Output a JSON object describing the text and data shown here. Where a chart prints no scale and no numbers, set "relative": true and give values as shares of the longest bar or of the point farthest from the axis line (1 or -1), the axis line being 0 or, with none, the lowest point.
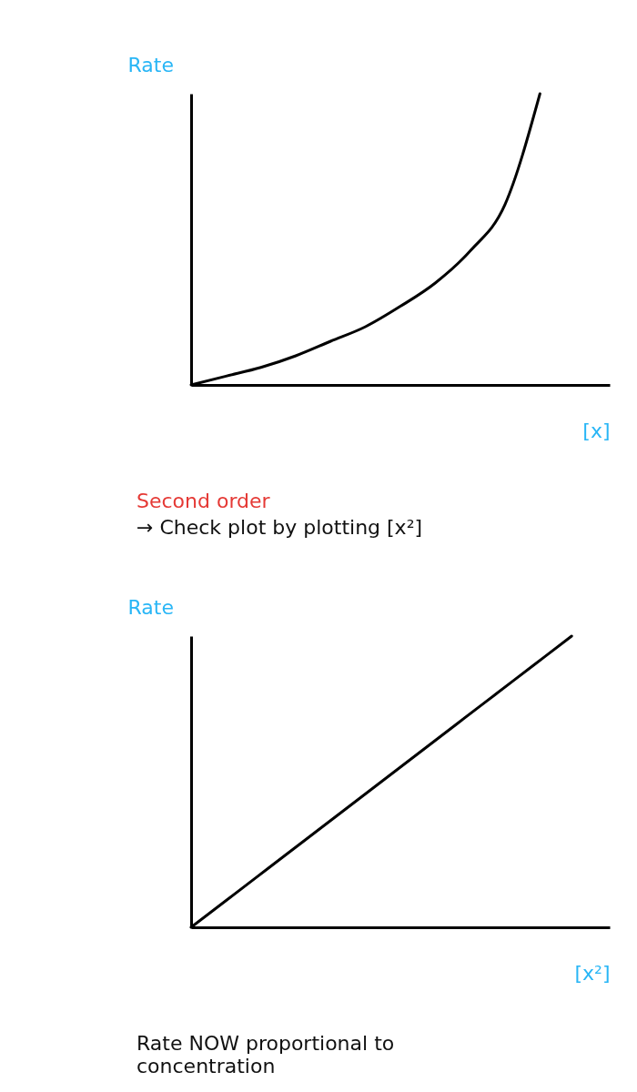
{
  "chart_data": [
    {
      "type": "line",
      "relative": true,
      "ylabel": "Rate",
      "xlabel": "[x]",
      "categories": [
        null,
        null,
        null,
        null,
        null,
        null,
        null,
        null,
        null,
        null,
        null,
        null,
        null
      ],
      "series": [
        {
          "color": "#000000",
          "values": [
            0,
            0.03,
            0.06,
            0.1,
            0.15,
            0.2,
            0.27,
            0.35,
            0.46,
            0.62,
            1.0,
            null,
            null
          ]
        }
      ],
      "annotations": [
        "Second order",
        "→ Check plot by plotting [x²]"
      ]
    },
    {
      "type": "line",
      "relative": true,
      "ylabel": "Rate",
      "xlabel": "[x²]",
      "categories": [
        null,
        null,
        null,
        null,
        null,
        null,
        null,
        null,
        null,
        null,
        null,
        null
      ],
      "series": [
        {
          "color": "#000000",
          "values": [
            0,
            0.1,
            0.2,
            0.3,
            0.4,
            0.5,
            0.6,
            0.7,
            0.8,
            0.9,
            1.0,
            null
          ]
        }
      ],
      "annotations": [
        "Rate NOW proportional to concentration"
      ]
    }
  ]
}
